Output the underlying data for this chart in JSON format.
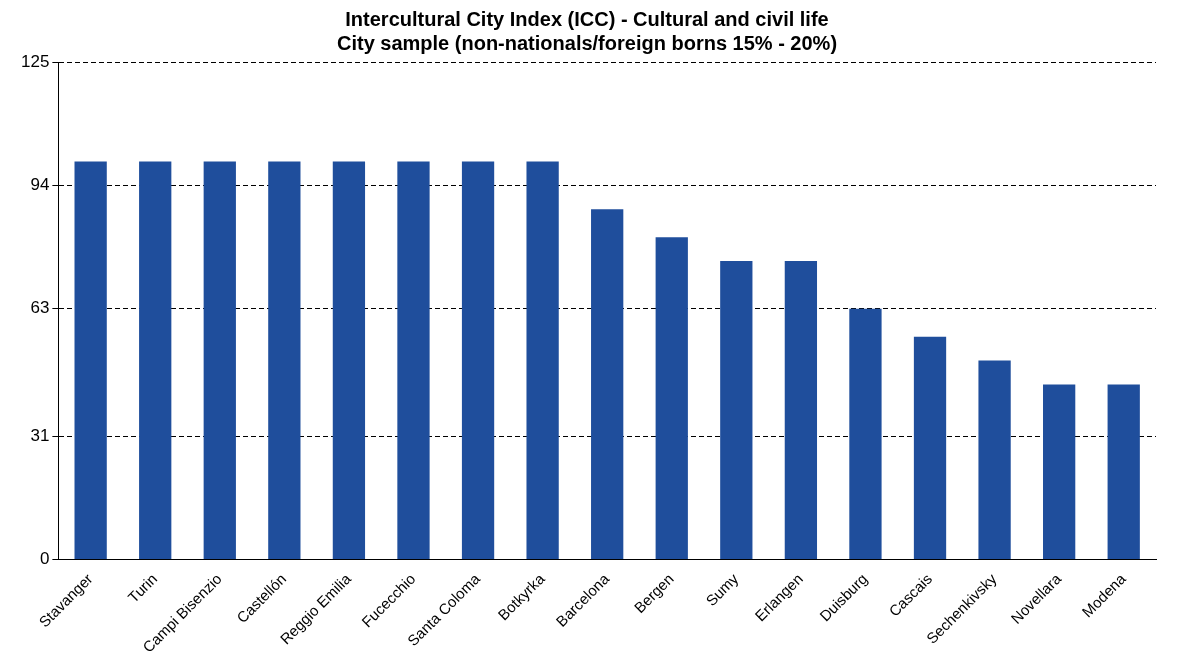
{
  "chart_data": {
    "type": "bar",
    "title": "Intercultural City Index (ICC) - Cultural and civil life\nCity sample (non-nationals/foreign borns 15% - 20%)",
    "categories": [
      "Stavanger",
      "Turin",
      "Campi Bisenzio",
      "Castellón",
      "Reggio Emilia",
      "Fucecchio",
      "Santa Coloma",
      "Botkyrka",
      "Barcelona",
      "Bergen",
      "Sumy",
      "Erlangen",
      "Duisburg",
      "Cascais",
      "Sechenkivsky",
      "Novellara",
      "Modena"
    ],
    "values": [
      100,
      100,
      100,
      100,
      100,
      100,
      100,
      100,
      88,
      81,
      75,
      75,
      63,
      56,
      50,
      44,
      44
    ],
    "color": "#1f4e9c",
    "ylim": [
      0,
      125
    ],
    "yticks": [
      0,
      31,
      63,
      94,
      125
    ],
    "grid": "y",
    "legend": false
  }
}
